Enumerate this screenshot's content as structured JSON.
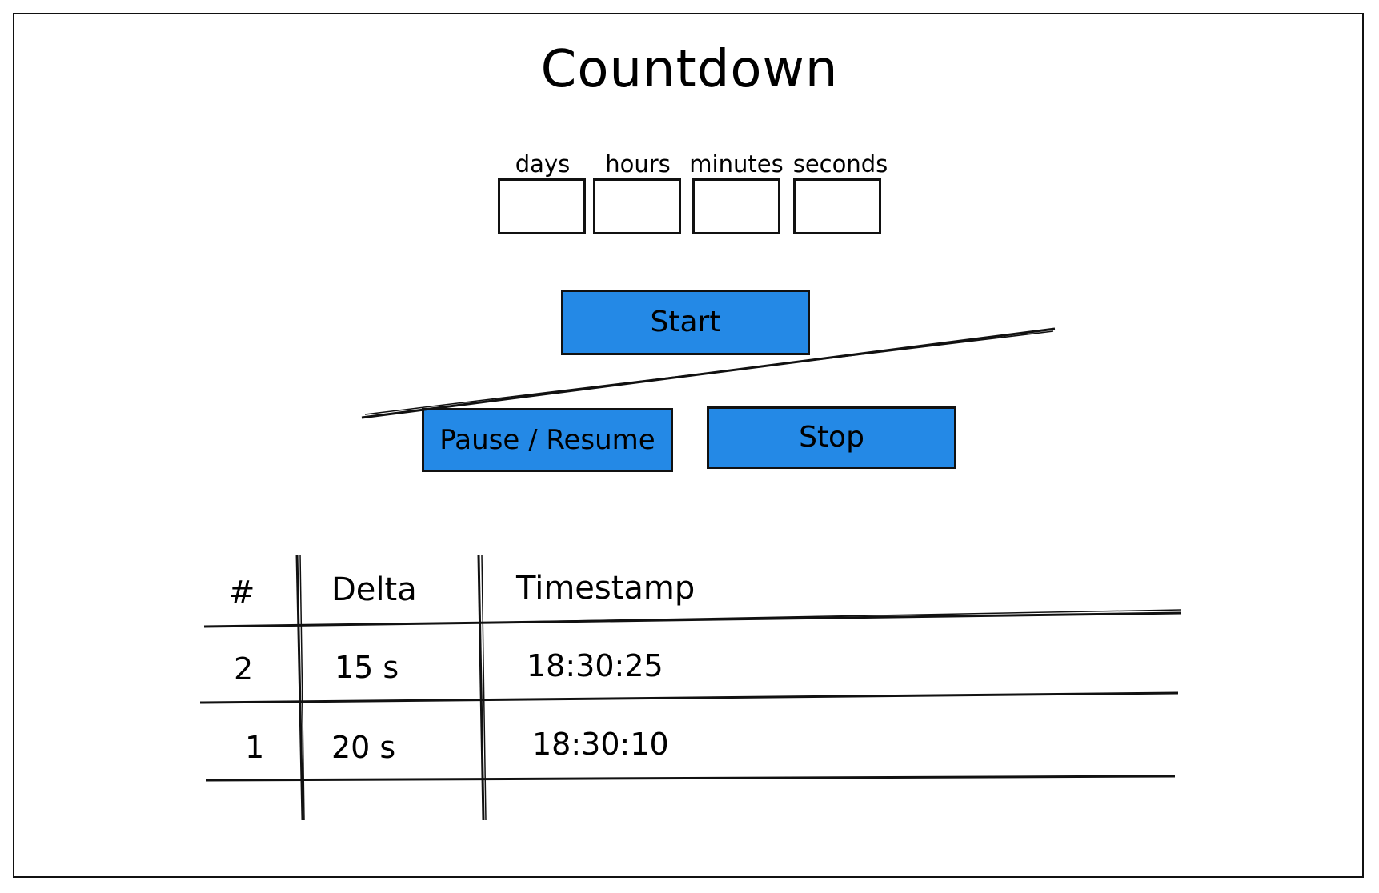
{
  "title": "Countdown",
  "fields": [
    {
      "label": "days",
      "value": ""
    },
    {
      "label": "hours",
      "value": ""
    },
    {
      "label": "minutes",
      "value": ""
    },
    {
      "label": "seconds",
      "value": ""
    }
  ],
  "buttons": {
    "start": "Start",
    "pause_resume": "Pause / Resume",
    "stop": "Stop"
  },
  "colors": {
    "button_fill": "#2489e6",
    "stroke": "#111111"
  },
  "table": {
    "headers": [
      "#",
      "Delta",
      "Timestamp"
    ],
    "rows": [
      [
        "2",
        "15 s",
        "18:30:25"
      ],
      [
        "1",
        "20 s",
        "18:30:10"
      ]
    ]
  }
}
